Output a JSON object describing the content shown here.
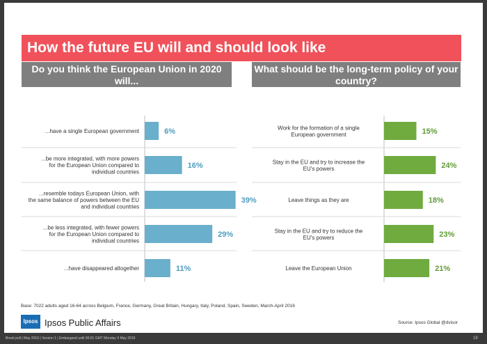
{
  "title": "How the future EU will and should look like",
  "left_header": "Do you think the European Union in 2020 will...",
  "right_header": "What should be the long-term policy of your country?",
  "colors": {
    "banner": "#f0515a",
    "header": "#7f7f7f",
    "left_bar": "#6aafcb",
    "right_bar": "#6fab3f",
    "left_label": "#4f9cc0",
    "right_label": "#5e9a35"
  },
  "chart_data": [
    {
      "type": "bar",
      "orientation": "horizontal",
      "categories": [
        "...have a single European government",
        "...be more integrated, with more powers for the European Union compared to individual countries",
        "...resemble todays European Union, with the same balance of powers between the EU and individual countries",
        "...be less integrated, with fewer powers for the European Union compared to individual countries",
        "...have disappeared altogether"
      ],
      "values": [
        6,
        16,
        39,
        29,
        11
      ],
      "value_labels": [
        "6%",
        "16%",
        "39%",
        "29%",
        "11%"
      ],
      "unit": "%"
    },
    {
      "type": "bar",
      "orientation": "horizontal",
      "categories": [
        "Work for the formation of a single European government",
        "Stay in the EU and try to increase the EU's powers",
        "Leave things as they are",
        "Stay in the EU and try to reduce the EU's powers",
        "Leave the European Union"
      ],
      "values": [
        15,
        24,
        18,
        23,
        21
      ],
      "value_labels": [
        "15%",
        "24%",
        "18%",
        "23%",
        "21%"
      ],
      "unit": "%"
    }
  ],
  "base_note": "Base: 7022 adults aged 16-64 across Belgium, France, Germany, Great Britain, Hungary, Italy, Poland, Spain, Sweden, March-April 2016",
  "logo_text": "Ipsos",
  "brand": "Ipsos Public Affairs",
  "source": "Source: Ipsos Global @dvisor",
  "footer": "Brexit poll | May 2016 | Version 1 | Embargoed until 00:01 GMT Monday 9 May 2016",
  "page_number": "19"
}
